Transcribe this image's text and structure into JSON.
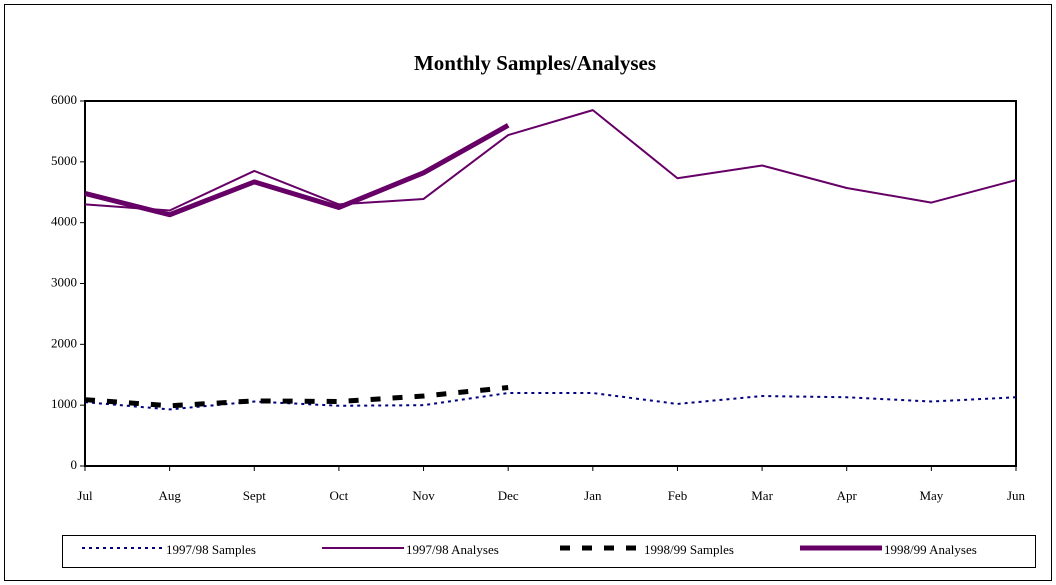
{
  "chart_data": {
    "type": "line",
    "title": "Monthly Samples/Analyses",
    "categories": [
      "Jul",
      "Aug",
      "Sept",
      "Oct",
      "Nov",
      "Dec",
      "Jan",
      "Feb",
      "Mar",
      "Apr",
      "May",
      "Jun"
    ],
    "series": [
      {
        "name": "1997/98 Samples",
        "color": "#000080",
        "style": "dotted",
        "values": [
          1050,
          930,
          1060,
          990,
          1000,
          1200,
          1200,
          1020,
          1150,
          1130,
          1060,
          1130
        ]
      },
      {
        "name": "1997/98 Analyses",
        "color": "#660066",
        "style": "solid",
        "values": [
          4300,
          4200,
          4850,
          4300,
          4390,
          5440,
          5850,
          4730,
          4940,
          4570,
          4330,
          4700
        ]
      },
      {
        "name": "1998/99 Samples",
        "color": "#000000",
        "style": "dashed-bold",
        "values": [
          1090,
          990,
          1070,
          1060,
          1150,
          1290,
          null,
          null,
          null,
          null,
          null,
          null
        ]
      },
      {
        "name": "1998/99 Analyses",
        "color": "#660066",
        "style": "solid-bold",
        "values": [
          4480,
          4130,
          4670,
          4250,
          4820,
          5600,
          null,
          null,
          null,
          null,
          null,
          null
        ]
      }
    ],
    "ylim": [
      0,
      6000
    ],
    "yticks": [
      0,
      1000,
      2000,
      3000,
      4000,
      5000,
      6000
    ],
    "grid": false,
    "legend": "bottom"
  }
}
